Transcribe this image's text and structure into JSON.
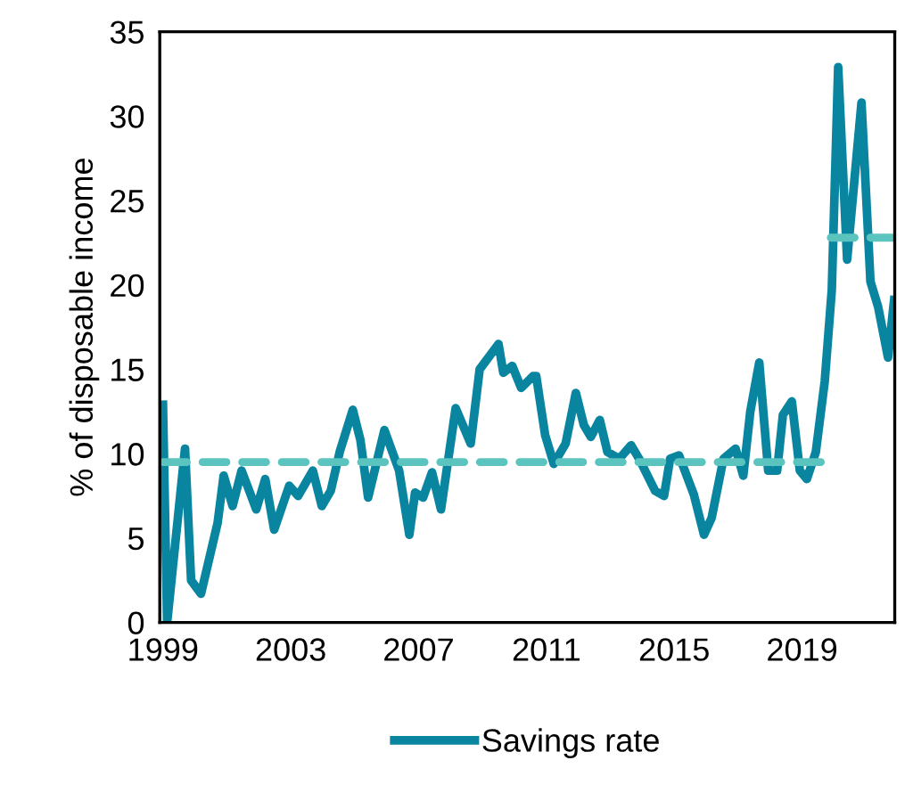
{
  "chart_data": {
    "type": "line",
    "ylabel": "% of disposable income",
    "xlim": [
      1998.9,
      2021.9
    ],
    "xticks": [
      1999,
      2003,
      2007,
      2011,
      2015,
      2019
    ],
    "ylim": [
      0,
      35
    ],
    "yticks": [
      0,
      5,
      10,
      15,
      20,
      25,
      30,
      35
    ],
    "grid": false,
    "legend": "bottom",
    "marker": "none",
    "series": [
      {
        "name": "Savings rate",
        "color": "#0a85a0",
        "line_style": "solid",
        "x": [
          1999.0,
          1999.13,
          1999.69,
          1999.88,
          2000.19,
          2000.71,
          2000.9,
          2001.18,
          2001.46,
          2001.92,
          2002.2,
          2002.48,
          2002.95,
          2003.23,
          2003.69,
          2003.97,
          2004.25,
          2004.53,
          2004.94,
          2005.18,
          2005.42,
          2005.93,
          2006.39,
          2006.71,
          2006.89,
          2007.14,
          2007.42,
          2007.7,
          2008.16,
          2008.63,
          2008.91,
          2009.5,
          2009.65,
          2009.93,
          2010.21,
          2010.58,
          2010.68,
          2010.96,
          2011.23,
          2011.6,
          2011.92,
          2012.17,
          2012.39,
          2012.67,
          2012.91,
          2013.28,
          2013.65,
          2013.93,
          2014.4,
          2014.68,
          2014.87,
          2015.15,
          2015.61,
          2015.93,
          2016.17,
          2016.54,
          2016.92,
          2017.16,
          2017.38,
          2017.66,
          2017.94,
          2018.22,
          2018.4,
          2018.68,
          2018.93,
          2019.15,
          2019.43,
          2019.71,
          2019.93,
          2020.13,
          2020.41,
          2020.86,
          2021.14,
          2021.38,
          2021.69,
          2021.88
        ],
        "values": [
          12.9,
          0,
          10.3,
          2.5,
          1.7,
          5.9,
          8.7,
          6.9,
          9.0,
          6.7,
          8.5,
          5.5,
          8.1,
          7.5,
          9.0,
          6.9,
          7.8,
          10.1,
          12.6,
          10.8,
          7.4,
          11.4,
          9.0,
          5.2,
          7.7,
          7.4,
          8.9,
          6.7,
          12.7,
          10.6,
          15.0,
          16.5,
          14.8,
          15.2,
          13.9,
          14.6,
          14.6,
          11.1,
          9.4,
          10.6,
          13.6,
          11.7,
          11.0,
          12.0,
          10.1,
          9.7,
          10.5,
          9.6,
          7.8,
          7.5,
          9.7,
          9.9,
          7.6,
          5.2,
          6.2,
          9.7,
          10.3,
          8.7,
          12.5,
          15.4,
          9.0,
          9.0,
          12.3,
          13.1,
          9.0,
          8.5,
          10.1,
          14.3,
          19.7,
          32.9,
          21.5,
          30.8,
          20.2,
          18.7,
          15.7,
          19.1
        ]
      },
      {
        "color": "#5bc4bf",
        "line_style": "dashed",
        "x": [
          1999.0,
          2019.9
        ],
        "values": [
          9.5,
          9.5
        ]
      },
      {
        "color": "#5bc4bf",
        "line_style": "dashed",
        "x": [
          2019.9,
          2021.85
        ],
        "values": [
          22.8,
          22.8
        ]
      }
    ]
  }
}
